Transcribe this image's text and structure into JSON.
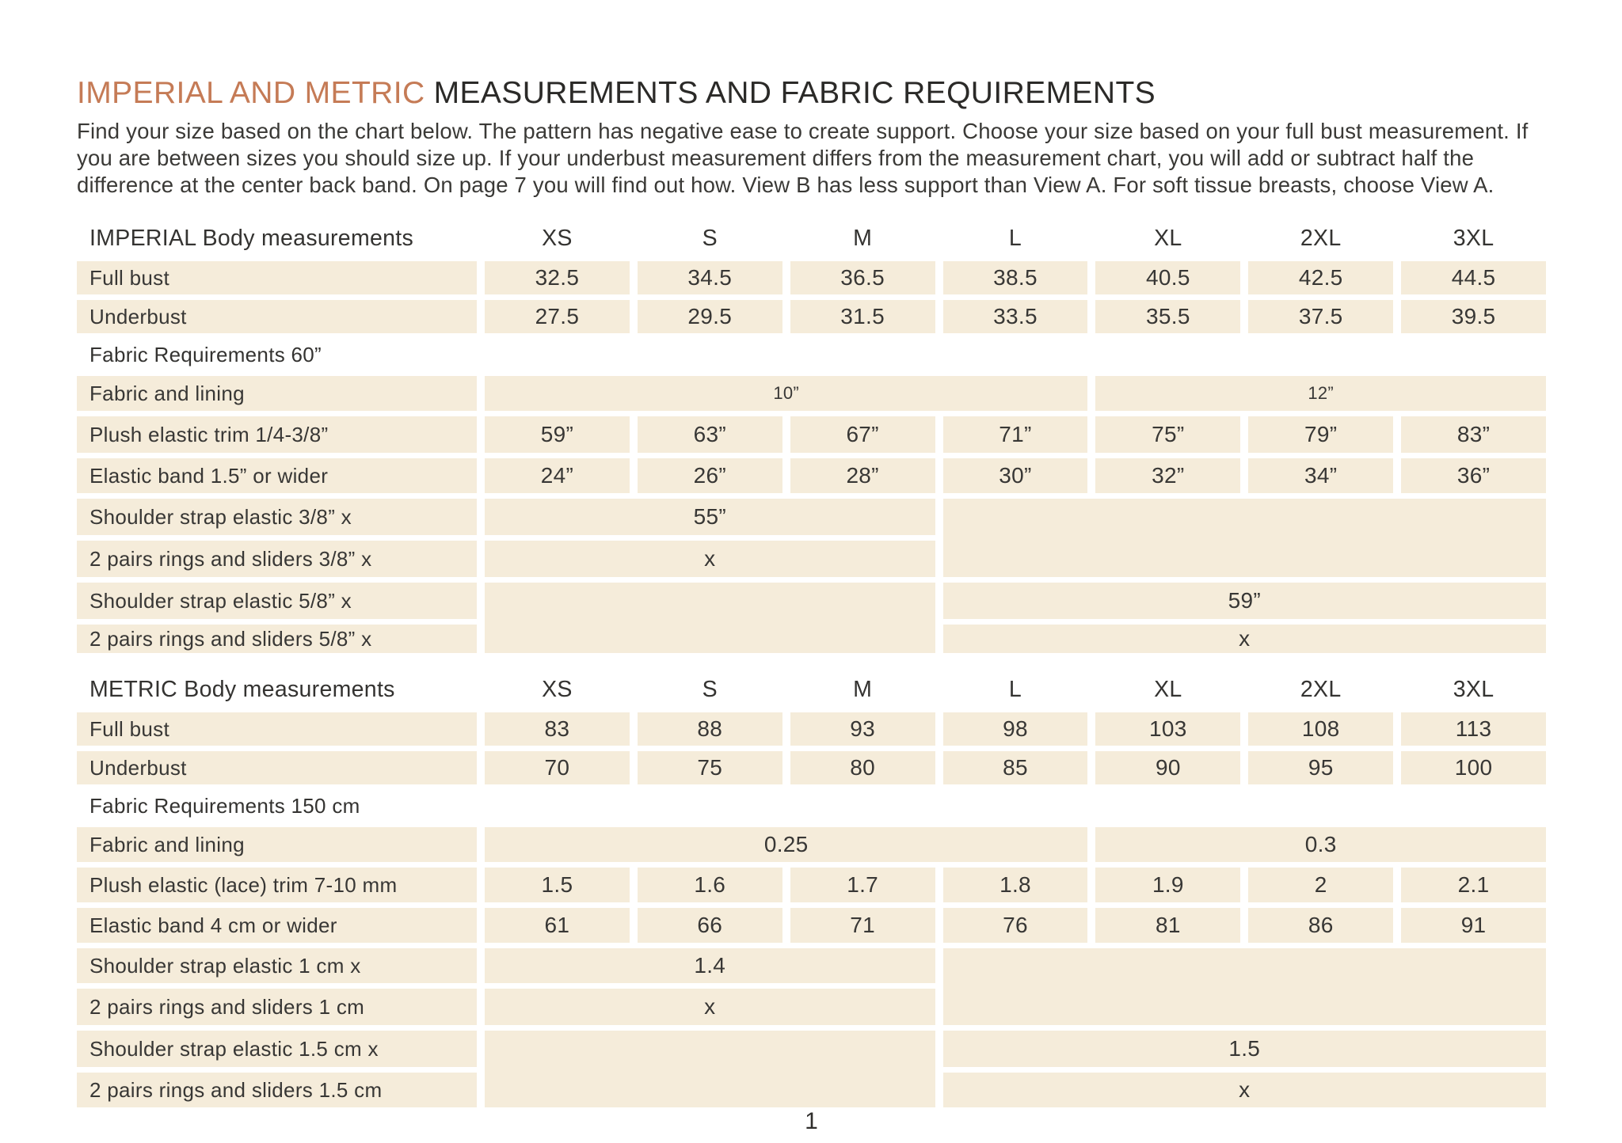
{
  "header": {
    "title_accent": "IMPERIAL AND METRIC",
    "title_rest": "MEASUREMENTS AND FABRIC REQUIREMENTS",
    "intro": "Find your size based on the chart below. The pattern has negative ease to create support.  Choose your size based on your full bust measurement. If you are between sizes you should size up. If your underbust measurement differs from the measurement chart, you will add or subtract half the difference at the center back band. On page 7 you will find out how. View B has less support than View A. For soft tissue breasts, choose View A."
  },
  "sizes": [
    "XS",
    "S",
    "M",
    "L",
    "XL",
    "2XL",
    "3XL"
  ],
  "imperial": {
    "title": "IMPERIAL Body measurements",
    "full_bust": {
      "label": "Full bust",
      "values": [
        "32.5",
        "34.5",
        "36.5",
        "38.5",
        "40.5",
        "42.5",
        "44.5"
      ]
    },
    "underbust": {
      "label": "Underbust",
      "values": [
        "27.5",
        "29.5",
        "31.5",
        "33.5",
        "35.5",
        "37.5",
        "39.5"
      ]
    },
    "fabric_section": "Fabric Requirements 60”",
    "fabric_lining": {
      "label": "Fabric and lining",
      "xs_l": "10”",
      "xl_3xl": "12”"
    },
    "plush_elastic": {
      "label": "Plush elastic trim 1/4-3/8”",
      "values": [
        "59”",
        "63”",
        "67”",
        "71”",
        "75”",
        "79”",
        "83”"
      ]
    },
    "elastic_band": {
      "label": "Elastic band 1.5” or wider",
      "values": [
        "24”",
        "26”",
        "28”",
        "30”",
        "32”",
        "34”",
        "36”"
      ]
    },
    "shoulder_strap_small": {
      "label": "Shoulder strap elastic 3/8” x",
      "value": "55”"
    },
    "rings_sliders_small": {
      "label": "2 pairs rings and sliders 3/8” x",
      "value": "x"
    },
    "shoulder_strap_large": {
      "label": "Shoulder strap elastic 5/8” x",
      "value": "59”"
    },
    "rings_sliders_large": {
      "label": "2 pairs rings and sliders 5/8” x",
      "value": "x"
    }
  },
  "metric": {
    "title": "METRIC Body measurements",
    "full_bust": {
      "label": "Full bust",
      "values": [
        "83",
        "88",
        "93",
        "98",
        "103",
        "108",
        "113"
      ]
    },
    "underbust": {
      "label": "Underbust",
      "values": [
        "70",
        "75",
        "80",
        "85",
        "90",
        "95",
        "100"
      ]
    },
    "fabric_section": "Fabric Requirements 150 cm",
    "fabric_lining": {
      "label": "Fabric and lining",
      "xs_l": "0.25",
      "xl_3xl": "0.3"
    },
    "plush_elastic": {
      "label": "Plush elastic (lace) trim 7-10 mm",
      "values": [
        "1.5",
        "1.6",
        "1.7",
        "1.8",
        "1.9",
        "2",
        "2.1"
      ]
    },
    "elastic_band": {
      "label": "Elastic band 4 cm or wider",
      "values": [
        "61",
        "66",
        "71",
        "76",
        "81",
        "86",
        "91"
      ]
    },
    "shoulder_strap_small": {
      "label": "Shoulder strap elastic 1 cm x",
      "value": "1.4"
    },
    "rings_sliders_small": {
      "label": "2 pairs rings and sliders 1 cm",
      "value": "x"
    },
    "shoulder_strap_large": {
      "label": "Shoulder strap elastic 1.5 cm x",
      "value": "1.5"
    },
    "rings_sliders_large": {
      "label": "2 pairs rings and sliders 1.5 cm",
      "value": "x"
    }
  },
  "footer": {
    "page_number": "1"
  },
  "colors": {
    "accent": "#c57b56",
    "cell_background": "#f5ecda",
    "text": "#3c3b39"
  }
}
